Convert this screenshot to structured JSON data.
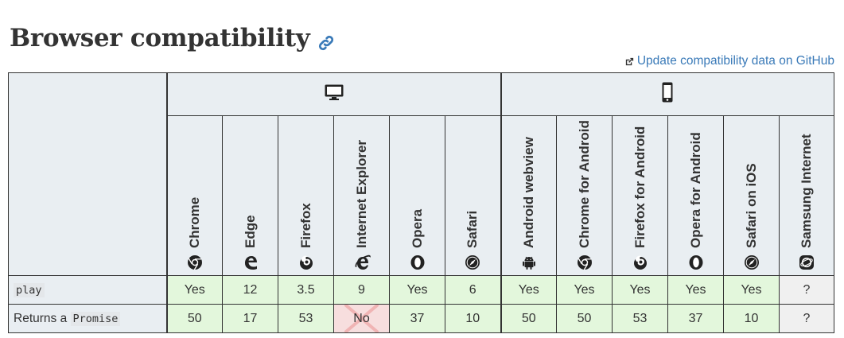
{
  "page": {
    "title": "Browser compatibility",
    "github_link": "Update compatibility data on GitHub"
  },
  "platforms": [
    {
      "name": "desktop-icon",
      "span": 6
    },
    {
      "name": "mobile-icon",
      "span": 6
    }
  ],
  "browsers": [
    {
      "label": "Chrome",
      "icon": "chrome-icon"
    },
    {
      "label": "Edge",
      "icon": "edge-icon"
    },
    {
      "label": "Firefox",
      "icon": "firefox-icon"
    },
    {
      "label": "Internet Explorer",
      "icon": "ie-icon"
    },
    {
      "label": "Opera",
      "icon": "opera-icon"
    },
    {
      "label": "Safari",
      "icon": "safari-icon"
    },
    {
      "label": "Android webview",
      "icon": "android-icon"
    },
    {
      "label": "Chrome for Android",
      "icon": "chrome-icon"
    },
    {
      "label": "Firefox for Android",
      "icon": "firefox-icon"
    },
    {
      "label": "Opera for Android",
      "icon": "opera-icon"
    },
    {
      "label": "Safari on iOS",
      "icon": "safari-icon"
    },
    {
      "label": "Samsung Internet",
      "icon": "samsung-icon"
    }
  ],
  "rows": [
    {
      "label_prefix": "",
      "label_code": "play",
      "cells": [
        {
          "v": "Yes",
          "s": "yes"
        },
        {
          "v": "12",
          "s": "yes"
        },
        {
          "v": "3.5",
          "s": "yes"
        },
        {
          "v": "9",
          "s": "yes"
        },
        {
          "v": "Yes",
          "s": "yes"
        },
        {
          "v": "6",
          "s": "yes"
        },
        {
          "v": "Yes",
          "s": "yes"
        },
        {
          "v": "Yes",
          "s": "yes"
        },
        {
          "v": "Yes",
          "s": "yes"
        },
        {
          "v": "Yes",
          "s": "yes"
        },
        {
          "v": "Yes",
          "s": "yes"
        },
        {
          "v": "?",
          "s": "unk"
        }
      ]
    },
    {
      "label_prefix": "Returns a ",
      "label_code": "Promise",
      "cells": [
        {
          "v": "50",
          "s": "yes"
        },
        {
          "v": "17",
          "s": "yes"
        },
        {
          "v": "53",
          "s": "yes"
        },
        {
          "v": "No",
          "s": "no"
        },
        {
          "v": "37",
          "s": "yes"
        },
        {
          "v": "10",
          "s": "yes"
        },
        {
          "v": "50",
          "s": "yes"
        },
        {
          "v": "50",
          "s": "yes"
        },
        {
          "v": "53",
          "s": "yes"
        },
        {
          "v": "37",
          "s": "yes"
        },
        {
          "v": "10",
          "s": "yes"
        },
        {
          "v": "?",
          "s": "unk"
        }
      ]
    }
  ],
  "colors": {
    "yes": "#e3f7dc",
    "no": "#f7dede",
    "unknown": "#f0f0f0",
    "header": "#e9eef2",
    "link": "#3a7ab8"
  }
}
